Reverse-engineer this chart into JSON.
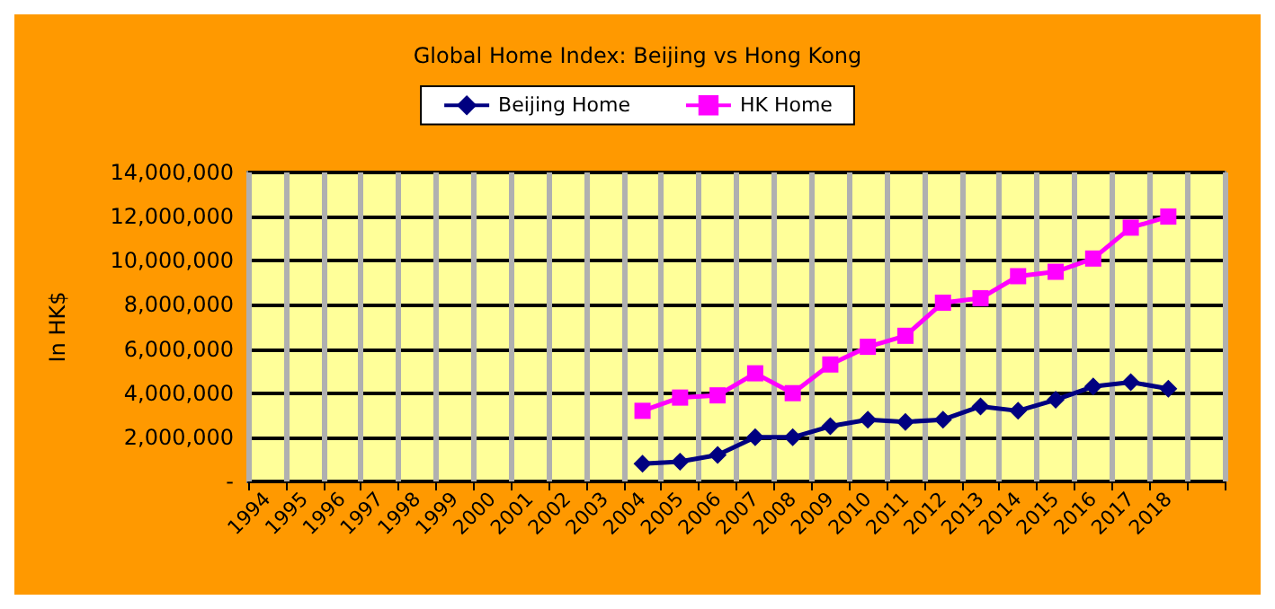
{
  "chart_data": {
    "type": "line",
    "title": "Global Home Index: Beijing vs Hong Kong",
    "ylabel": "In HK$",
    "categories": [
      "1994",
      "1995",
      "1996",
      "1997",
      "1998",
      "1999",
      "2000",
      "2001",
      "2002",
      "2003",
      "2004",
      "2005",
      "2006",
      "2007",
      "2008",
      "2009",
      "2010",
      "2011",
      "2012",
      "2013",
      "2014",
      "2015",
      "2016",
      "2017",
      "2018",
      null
    ],
    "series": [
      {
        "name": "Beijing Home",
        "color": "#000080",
        "marker": "diamond",
        "values": [
          null,
          null,
          null,
          null,
          null,
          null,
          null,
          null,
          null,
          null,
          800000,
          900000,
          1200000,
          2000000,
          2000000,
          2500000,
          2800000,
          2700000,
          2800000,
          3400000,
          3200000,
          3700000,
          4300000,
          4500000,
          4200000,
          null
        ]
      },
      {
        "name": "HK Home",
        "color": "#ff00ff",
        "marker": "square",
        "values": [
          null,
          null,
          null,
          null,
          null,
          null,
          null,
          null,
          null,
          null,
          3200000,
          3800000,
          3900000,
          4900000,
          4000000,
          5300000,
          6100000,
          6600000,
          8100000,
          8300000,
          9300000,
          9500000,
          10100000,
          11500000,
          12000000,
          null
        ]
      }
    ],
    "ylim": [
      0,
      14000000
    ],
    "yticks": [
      {
        "value": 0,
        "label": "-"
      },
      {
        "value": 2000000,
        "label": "2,000,000"
      },
      {
        "value": 4000000,
        "label": "4,000,000"
      },
      {
        "value": 6000000,
        "label": "6,000,000"
      },
      {
        "value": 8000000,
        "label": "8,000,000"
      },
      {
        "value": 10000000,
        "label": "10,000,000"
      },
      {
        "value": 12000000,
        "label": "12,000,000"
      },
      {
        "value": 14000000,
        "label": "14,000,000"
      }
    ],
    "grid": true,
    "legend": "top",
    "line_style": "solid"
  }
}
